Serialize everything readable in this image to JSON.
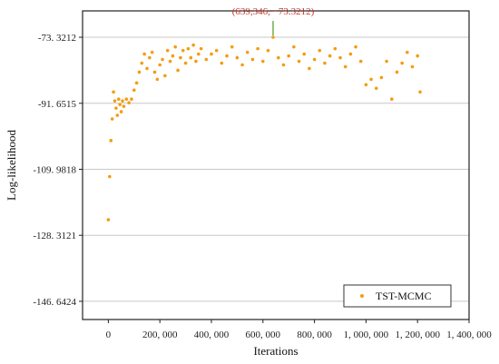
{
  "chart_data": {
    "type": "scatter",
    "xlabel": "Iterations",
    "ylabel": "Log-likelihood",
    "xlim": [
      -100000,
      1400000
    ],
    "ylim": [
      -151.7,
      -66.0
    ],
    "x_ticks": [
      {
        "value": 0,
        "label": "0"
      },
      {
        "value": 200000,
        "label": "200, 000"
      },
      {
        "value": 400000,
        "label": "400, 000"
      },
      {
        "value": 600000,
        "label": "600, 000"
      },
      {
        "value": 800000,
        "label": "800, 000"
      },
      {
        "value": 1000000,
        "label": "1, 000, 000"
      },
      {
        "value": 1200000,
        "label": "1, 200, 000"
      },
      {
        "value": 1400000,
        "label": "1, 400, 000"
      }
    ],
    "y_ticks": [
      {
        "value": -73.3212,
        "label": "-73. 3212"
      },
      {
        "value": -91.6515,
        "label": "-91. 6515"
      },
      {
        "value": -109.9818,
        "label": "-109. 9818"
      },
      {
        "value": -128.3121,
        "label": "-128. 3121"
      },
      {
        "value": -146.6424,
        "label": "-146. 6424"
      }
    ],
    "grid": "horizontal",
    "legend_position": "bottom-right",
    "series": [
      {
        "name": "TST-MCMC",
        "color": "#f39c12",
        "x": [
          0,
          5000,
          10000,
          15000,
          20000,
          25000,
          30000,
          35000,
          40000,
          45000,
          50000,
          55000,
          60000,
          70000,
          80000,
          90000,
          100000,
          110000,
          120000,
          130000,
          140000,
          150000,
          160000,
          170000,
          180000,
          190000,
          200000,
          210000,
          220000,
          230000,
          240000,
          250000,
          260000,
          270000,
          280000,
          290000,
          300000,
          310000,
          320000,
          330000,
          340000,
          350000,
          360000,
          380000,
          400000,
          420000,
          440000,
          460000,
          480000,
          500000,
          520000,
          540000,
          560000,
          580000,
          600000,
          620000,
          639346,
          660000,
          680000,
          700000,
          720000,
          740000,
          760000,
          780000,
          800000,
          820000,
          840000,
          860000,
          880000,
          900000,
          920000,
          940000,
          960000,
          980000,
          1000000,
          1020000,
          1040000,
          1060000,
          1080000,
          1100000,
          1120000,
          1140000,
          1160000,
          1180000,
          1200000,
          1210000
        ],
        "y": [
          -124.0,
          -112.0,
          -102.0,
          -96.0,
          -88.5,
          -91.0,
          -93.0,
          -95.0,
          -90.5,
          -92.0,
          -94.0,
          -91.0,
          -92.5,
          -90.5,
          -91.5,
          -90.5,
          -88.0,
          -86.0,
          -83.0,
          -80.5,
          -78.0,
          -82.0,
          -79.0,
          -77.5,
          -83.0,
          -85.0,
          -81.0,
          -79.5,
          -84.0,
          -77.0,
          -80.0,
          -78.5,
          -76.0,
          -82.5,
          -79.0,
          -77.0,
          -80.5,
          -76.5,
          -79.0,
          -75.5,
          -80.0,
          -78.0,
          -76.5,
          -79.5,
          -78.0,
          -77.0,
          -80.5,
          -78.5,
          -76.0,
          -79.0,
          -81.0,
          -77.5,
          -79.5,
          -76.5,
          -80.0,
          -77.0,
          -73.3212,
          -79.0,
          -81.0,
          -78.5,
          -76.0,
          -80.0,
          -78.0,
          -82.0,
          -79.5,
          -77.0,
          -80.5,
          -78.5,
          -76.5,
          -79.0,
          -81.5,
          -78.0,
          -76.0,
          -80.0,
          -86.5,
          -85.0,
          -87.5,
          -84.5,
          -80.0,
          -90.5,
          -83.0,
          -80.5,
          -77.5,
          -81.5,
          -78.5,
          -88.5
        ]
      }
    ],
    "annotation": {
      "text": "(639,346, −73.3212)",
      "x": 639346,
      "y": -73.3212,
      "text_color": "#c0392b",
      "marker_color": "#6ab04c"
    }
  }
}
